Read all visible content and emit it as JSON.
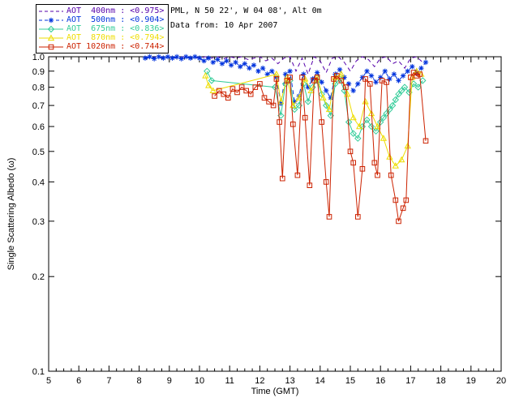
{
  "header": {
    "site_line": "PML, N 50 22', W 04 08', Alt 0m",
    "date_line": "Data from: 10 Apr 2007"
  },
  "legend": {
    "items": [
      {
        "label": "AOT  400nm : <0.975>",
        "color": "#5500AA",
        "marker": "none",
        "line": "dashed"
      },
      {
        "label": "AOT  500nm : <0.904>",
        "color": "#0033DD",
        "marker": "asterisk",
        "line": "dashed"
      },
      {
        "label": "AOT  675nm : <0.836>",
        "color": "#33CC99",
        "marker": "diamond",
        "line": "solid"
      },
      {
        "label": "AOT  870nm : <0.794>",
        "color": "#EEDD00",
        "marker": "triangle",
        "line": "solid"
      },
      {
        "label": "AOT 1020nm : <0.744>",
        "color": "#CC2200",
        "marker": "square",
        "line": "solid"
      }
    ]
  },
  "chart_data": {
    "type": "line",
    "title": "",
    "xlabel": "Time (GMT)",
    "ylabel": "Single Scattering Albedo (ω)",
    "xlim": [
      5,
      20
    ],
    "ylim": [
      0.1,
      1.0
    ],
    "yscale": "log",
    "grid": false,
    "legend_position": "top-left",
    "xticks": [
      "5",
      "6",
      "7",
      "8",
      "9",
      "10",
      "11",
      "12",
      "13",
      "14",
      "15",
      "16",
      "17",
      "18",
      "19",
      "20"
    ],
    "yticks": [
      "1.0",
      "0.9",
      "0.8",
      "0.7",
      "0.6",
      "0.5",
      "0.4",
      "0.3",
      "0.2",
      "0.1"
    ],
    "series": [
      {
        "name": "AOT 400nm",
        "mean": "<0.975>",
        "color": "#5500AA",
        "marker": "none",
        "line": "dashed",
        "x": [
          8.2,
          8.4,
          8.6,
          8.8,
          9.0,
          9.2,
          9.4,
          9.6,
          9.8,
          10.0,
          10.2,
          10.4,
          10.6,
          10.8,
          11.0,
          11.2,
          11.4,
          11.6,
          11.8,
          12.0,
          12.2,
          12.4,
          12.6,
          12.8,
          13.0,
          13.2,
          13.4,
          13.6,
          13.8,
          14.0,
          14.2,
          14.4,
          14.6,
          14.8,
          15.0,
          15.2,
          15.4,
          15.6,
          15.8,
          16.0,
          16.2,
          16.4,
          16.6,
          16.8,
          17.0,
          17.2,
          17.4
        ],
        "y": [
          1.0,
          0.99,
          1.0,
          0.995,
          1.0,
          0.99,
          1.0,
          0.995,
          1.0,
          0.99,
          1.0,
          0.99,
          1.0,
          0.985,
          1.0,
          0.99,
          1.0,
          0.98,
          0.99,
          1.0,
          0.97,
          0.99,
          0.95,
          0.99,
          1.0,
          0.9,
          0.99,
          0.88,
          1.0,
          0.97,
          0.89,
          0.99,
          1.0,
          0.96,
          0.9,
          0.97,
          1.0,
          0.98,
          0.93,
          0.99,
          1.0,
          0.95,
          0.97,
          0.92,
          0.99,
          1.0,
          0.96
        ]
      },
      {
        "name": "AOT 500nm",
        "mean": "<0.904>",
        "color": "#0033DD",
        "marker": "asterisk",
        "line": "dashed",
        "x": [
          8.2,
          8.35,
          8.5,
          8.65,
          8.8,
          8.95,
          9.1,
          9.25,
          9.4,
          9.55,
          9.7,
          9.85,
          10.0,
          10.15,
          10.3,
          10.45,
          10.6,
          10.75,
          10.9,
          11.05,
          11.2,
          11.35,
          11.5,
          11.65,
          11.8,
          11.95,
          12.1,
          12.25,
          12.4,
          12.55,
          12.7,
          12.85,
          13.0,
          13.15,
          13.3,
          13.45,
          13.6,
          13.75,
          13.9,
          14.05,
          14.2,
          14.35,
          14.5,
          14.65,
          14.8,
          14.95,
          15.1,
          15.25,
          15.4,
          15.55,
          15.7,
          15.85,
          16.0,
          16.15,
          16.3,
          16.45,
          16.6,
          16.75,
          16.9,
          17.05,
          17.2,
          17.35,
          17.5
        ],
        "y": [
          0.99,
          1.0,
          0.985,
          1.0,
          0.99,
          1.0,
          0.99,
          1.0,
          0.985,
          1.0,
          0.99,
          1.0,
          0.99,
          0.97,
          0.99,
          0.96,
          0.98,
          0.95,
          0.97,
          0.94,
          0.96,
          0.93,
          0.95,
          0.92,
          0.94,
          0.9,
          0.92,
          0.88,
          0.9,
          0.86,
          0.71,
          0.88,
          0.9,
          0.72,
          0.75,
          0.88,
          0.8,
          0.85,
          0.89,
          0.83,
          0.78,
          0.74,
          0.88,
          0.91,
          0.86,
          0.82,
          0.78,
          0.82,
          0.86,
          0.9,
          0.87,
          0.83,
          0.86,
          0.9,
          0.85,
          0.88,
          0.84,
          0.87,
          0.9,
          0.93,
          0.89,
          0.92,
          0.96
        ]
      },
      {
        "name": "AOT 675nm",
        "mean": "<0.836>",
        "color": "#33CC99",
        "marker": "diamond",
        "line": "solid",
        "x": [
          10.25,
          10.4,
          12.5,
          12.7,
          12.85,
          13.0,
          13.15,
          13.3,
          13.45,
          13.6,
          13.75,
          13.9,
          14.05,
          14.2,
          14.35,
          14.5,
          14.65,
          14.8,
          14.95,
          15.1,
          15.25,
          15.4,
          15.55,
          15.7,
          15.85,
          16.0,
          16.1,
          16.2,
          16.3,
          16.4,
          16.5,
          16.6,
          16.7,
          16.8,
          16.95,
          17.1,
          17.25,
          17.4
        ],
        "y": [
          0.9,
          0.84,
          0.8,
          0.65,
          0.82,
          0.84,
          0.68,
          0.7,
          0.82,
          0.72,
          0.8,
          0.84,
          0.76,
          0.7,
          0.65,
          0.82,
          0.85,
          0.78,
          0.62,
          0.57,
          0.55,
          0.6,
          0.63,
          0.6,
          0.58,
          0.62,
          0.64,
          0.66,
          0.68,
          0.7,
          0.73,
          0.76,
          0.78,
          0.8,
          0.77,
          0.82,
          0.8,
          0.84
        ]
      },
      {
        "name": "AOT 870nm",
        "mean": "<0.794>",
        "color": "#EEDD00",
        "marker": "triangle",
        "line": "solid",
        "x": [
          10.2,
          10.3,
          10.45,
          12.55,
          12.7,
          12.9,
          13.1,
          13.3,
          13.5,
          13.7,
          13.9,
          14.1,
          14.3,
          14.5,
          14.7,
          14.9,
          15.1,
          15.3,
          15.5,
          15.7,
          15.9,
          16.1,
          16.3,
          16.5,
          16.7,
          16.9,
          17.05,
          17.2,
          17.35
        ],
        "y": [
          0.87,
          0.81,
          0.78,
          0.88,
          0.72,
          0.86,
          0.7,
          0.74,
          0.85,
          0.78,
          0.86,
          0.74,
          0.68,
          0.86,
          0.88,
          0.76,
          0.64,
          0.6,
          0.72,
          0.66,
          0.6,
          0.55,
          0.48,
          0.45,
          0.47,
          0.52,
          0.86,
          0.9,
          0.88
        ]
      },
      {
        "name": "AOT 1020nm",
        "mean": "<0.744>",
        "color": "#CC2200",
        "marker": "square",
        "line": "solid",
        "x": [
          10.5,
          10.65,
          10.8,
          10.95,
          11.1,
          11.25,
          11.4,
          11.55,
          11.7,
          11.85,
          12.0,
          12.15,
          12.3,
          12.45,
          12.55,
          12.65,
          12.75,
          12.9,
          13.0,
          13.1,
          13.25,
          13.4,
          13.5,
          13.65,
          13.8,
          13.9,
          14.05,
          14.2,
          14.3,
          14.45,
          14.55,
          14.7,
          14.85,
          15.0,
          15.1,
          15.25,
          15.4,
          15.5,
          15.65,
          15.8,
          15.9,
          16.05,
          16.2,
          16.35,
          16.5,
          16.6,
          16.75,
          16.85,
          17.0,
          17.1,
          17.2,
          17.3,
          17.5
        ],
        "y": [
          0.75,
          0.78,
          0.76,
          0.74,
          0.79,
          0.77,
          0.8,
          0.78,
          0.76,
          0.8,
          0.82,
          0.74,
          0.72,
          0.7,
          0.85,
          0.62,
          0.41,
          0.84,
          0.86,
          0.61,
          0.42,
          0.86,
          0.64,
          0.39,
          0.84,
          0.86,
          0.62,
          0.4,
          0.31,
          0.85,
          0.87,
          0.84,
          0.8,
          0.5,
          0.46,
          0.31,
          0.44,
          0.85,
          0.82,
          0.46,
          0.42,
          0.84,
          0.83,
          0.42,
          0.35,
          0.3,
          0.33,
          0.35,
          0.86,
          0.89,
          0.87,
          0.88,
          0.54
        ]
      }
    ]
  }
}
